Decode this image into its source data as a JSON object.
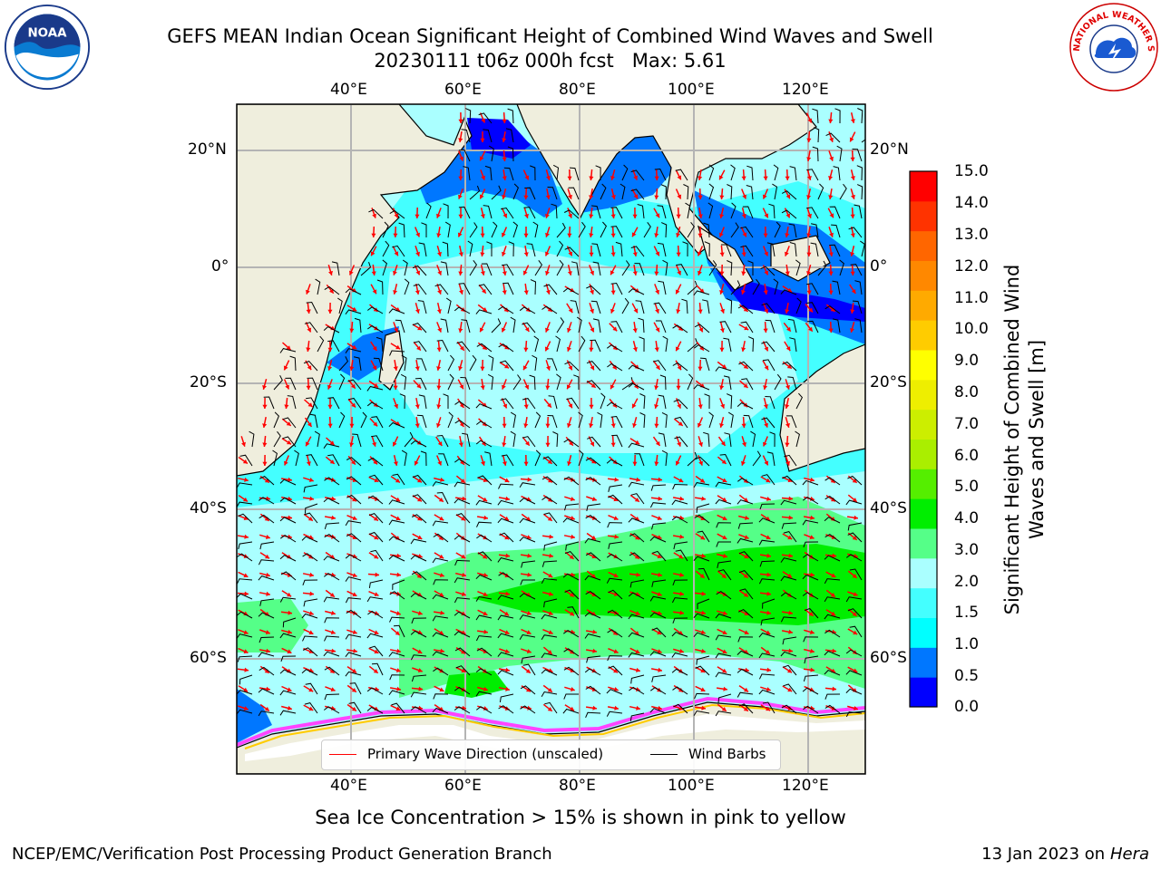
{
  "header": {
    "title_line1": "GEFS MEAN Indian Ocean Significant Height of Combined Wind Waves and Swell",
    "title_line2": "20230111 t06z 000h fcst   Max: 5.61"
  },
  "logos": {
    "left": "NOAA",
    "right": "NATIONAL WEATHER SERVICE"
  },
  "map": {
    "lon_labels": [
      "40°E",
      "60°E",
      "80°E",
      "100°E",
      "120°E"
    ],
    "lat_labels_left": [
      "20°N",
      "0°",
      "20°S",
      "40°S",
      "60°S"
    ],
    "lat_labels_right": [
      "20°N",
      "0°",
      "20°S",
      "40°S",
      "60°S"
    ],
    "lon_range": [
      20,
      130
    ],
    "lat_range": [
      -75,
      25
    ],
    "colors": {
      "land": "#efeedd",
      "grid": "#b4b4b4",
      "arrow": "#ff0000",
      "barb": "#000000"
    }
  },
  "colorbar": {
    "label": "Significant Height of Combined Wind Waves and Swell [m]",
    "ticks": [
      "15.0",
      "14.0",
      "13.0",
      "12.0",
      "11.0",
      "10.0",
      "9.0",
      "8.0",
      "7.0",
      "6.0",
      "5.0",
      "4.0",
      "3.0",
      "2.0",
      "1.5",
      "1.0",
      "0.5",
      "0.0"
    ],
    "colors_bottom_to_top": [
      "#0000ff",
      "#0077ff",
      "#00ffff",
      "#44ffff",
      "#aaffff",
      "#55ff88",
      "#00ee00",
      "#55ee00",
      "#aaee00",
      "#ccee00",
      "#eeee00",
      "#ffff00",
      "#ffcc00",
      "#ffaa00",
      "#ff8800",
      "#ff6600",
      "#ff3300",
      "#ff0000"
    ]
  },
  "legend": {
    "wave_label": "Primary Wave Direction (unscaled)",
    "barb_label": "Wind Barbs"
  },
  "caption": "Sea Ice Concentration > 15% is shown in pink to yellow",
  "footer": {
    "left": "NCEP/EMC/Verification Post Processing Product Generation Branch",
    "right_prefix": "13 Jan 2023 on ",
    "right_host": "Hera"
  }
}
